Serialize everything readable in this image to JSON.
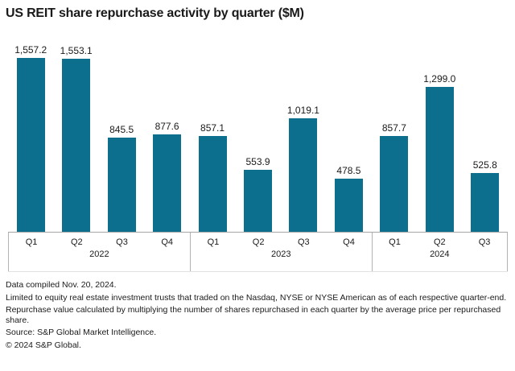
{
  "chart_data": {
    "type": "bar",
    "title": "US REIT share repurchase activity by quarter ($M)",
    "bar_color": "#0B6F8D",
    "ylim": [
      0,
      1650
    ],
    "grid": false,
    "legend": false,
    "value_labels_shown": true,
    "groups": [
      {
        "year": "2022",
        "quarters": [
          "Q1",
          "Q2",
          "Q3",
          "Q4"
        ],
        "values": [
          1557.2,
          1553.1,
          845.5,
          877.6
        ],
        "labels": [
          "1,557.2",
          "1,553.1",
          "845.5",
          "877.6"
        ]
      },
      {
        "year": "2023",
        "quarters": [
          "Q1",
          "Q2",
          "Q3",
          "Q4"
        ],
        "values": [
          857.1,
          553.9,
          1019.1,
          478.5
        ],
        "labels": [
          "857.1",
          "553.9",
          "1,019.1",
          "478.5"
        ]
      },
      {
        "year": "2024",
        "quarters": [
          "Q1",
          "Q2",
          "Q3"
        ],
        "values": [
          857.7,
          1299.0,
          525.8
        ],
        "labels": [
          "857.7",
          "1,299.0",
          "525.8"
        ]
      }
    ]
  },
  "footnotes": [
    "Data compiled Nov. 20, 2024.",
    "Limited to equity real estate investment trusts that traded on the Nasdaq, NYSE or NYSE American as of each respective quarter-end.",
    "Repurchase value calculated by multiplying the number of shares repurchased in each quarter by the average price per repurchased share.",
    "Source: S&P Global Market Intelligence.",
    "© 2024 S&P Global."
  ]
}
